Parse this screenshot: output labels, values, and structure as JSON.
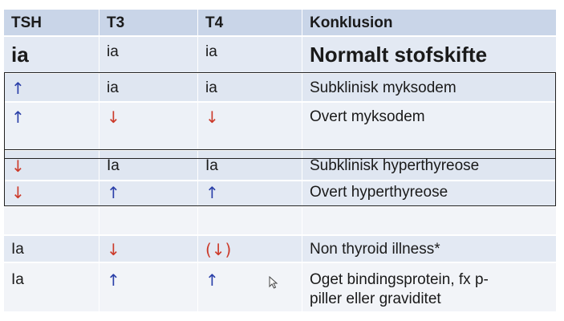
{
  "header": {
    "col1": "TSH",
    "col2": "T3",
    "col3": "T4",
    "col4": "Konklusion"
  },
  "rows": {
    "normal": {
      "tsh": "ia",
      "t3": "ia",
      "t4": "ia",
      "conclusion": "Normalt stofskifte"
    },
    "subclin_myx": {
      "tsh": "↑",
      "t3": "ia",
      "t4": "ia",
      "conclusion": "Subklinisk myksodem"
    },
    "overt_myx": {
      "tsh": "↑",
      "t3": "↓",
      "t4": "↓",
      "conclusion": "Overt myksodem"
    },
    "subclin_hyper": {
      "tsh": "↓",
      "t3": "Ia",
      "t4": "Ia",
      "conclusion": "Subklinisk hyperthyreose"
    },
    "overt_hyper": {
      "tsh": "↓",
      "t3": "↑",
      "t4": "↑",
      "conclusion": "Overt hyperthyreose"
    },
    "nti": {
      "tsh": "Ia",
      "t3": "↓",
      "t4": "(↓)",
      "conclusion": "Non thyroid illness*"
    },
    "binding": {
      "tsh": "Ia",
      "t3": "↑",
      "t4": "↑",
      "conclusion_line1": "Oget bindingsprotein, fx p-",
      "conclusion_line2": "piller eller graviditet"
    }
  },
  "colors": {
    "up_arrow": "#2a3fa8",
    "down_arrow": "#cc3a2a",
    "header_bg": "#c9d5e8"
  }
}
